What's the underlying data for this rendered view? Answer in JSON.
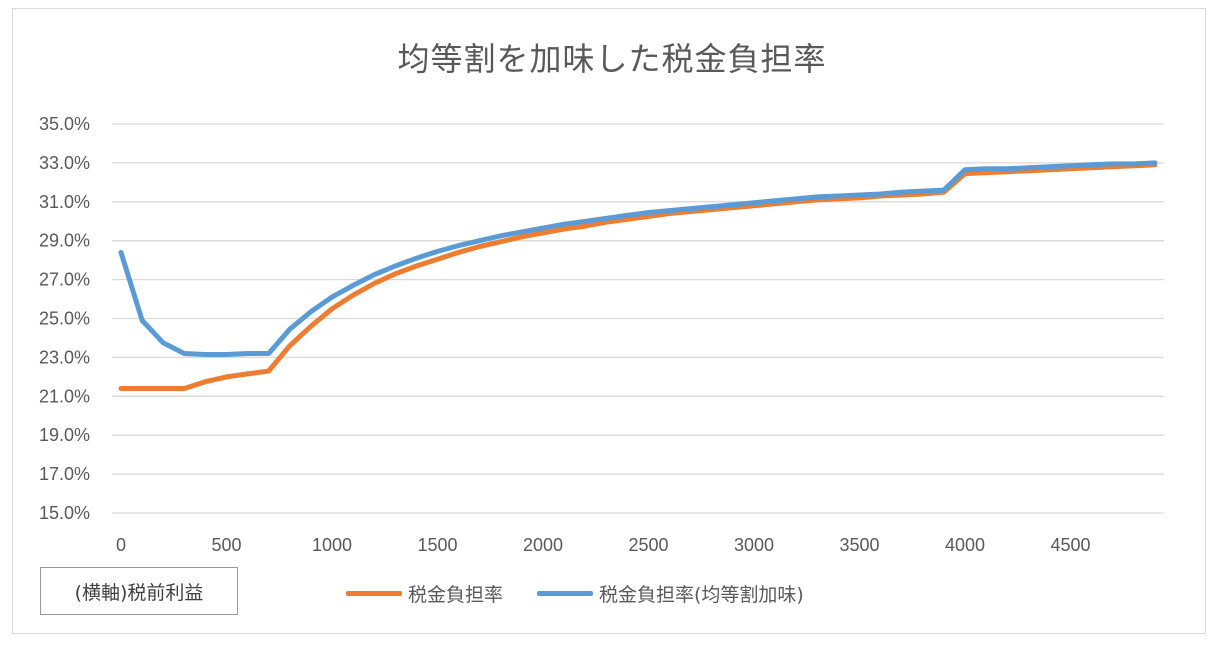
{
  "chart_data": {
    "type": "line",
    "title": "均等割を加味した税金負担率",
    "xlabel": "(横軸)税前利益",
    "ylabel": "",
    "x": [
      0,
      100,
      200,
      300,
      400,
      500,
      600,
      700,
      800,
      900,
      1000,
      1100,
      1200,
      1300,
      1400,
      1500,
      1600,
      1700,
      1800,
      1900,
      2000,
      2100,
      2200,
      2300,
      2400,
      2500,
      2600,
      2700,
      2800,
      2900,
      3000,
      3100,
      3200,
      3300,
      3400,
      3500,
      3600,
      3700,
      3800,
      3900,
      4000,
      4100,
      4200,
      4300,
      4400,
      4500,
      4600,
      4700,
      4800,
      4900
    ],
    "series": [
      {
        "name": "税金負担率",
        "color": "#ED7D31",
        "values": [
          21.4,
          21.4,
          21.4,
          21.4,
          21.75,
          22.0,
          22.15,
          22.3,
          23.6,
          24.6,
          25.5,
          26.2,
          26.8,
          27.3,
          27.7,
          28.05,
          28.4,
          28.7,
          28.95,
          29.2,
          29.4,
          29.6,
          29.75,
          29.95,
          30.1,
          30.25,
          30.4,
          30.5,
          30.6,
          30.7,
          30.8,
          30.9,
          31.0,
          31.1,
          31.15,
          31.2,
          31.3,
          31.35,
          31.4,
          31.5,
          32.45,
          32.5,
          32.55,
          32.6,
          32.65,
          32.7,
          32.75,
          32.8,
          32.85,
          32.9
        ]
      },
      {
        "name": "税金負担率(均等割加味)",
        "color": "#5B9BD5",
        "values": [
          28.4,
          24.9,
          23.75,
          23.2,
          23.15,
          23.15,
          23.2,
          23.2,
          24.45,
          25.35,
          26.1,
          26.7,
          27.25,
          27.7,
          28.1,
          28.45,
          28.75,
          29.0,
          29.25,
          29.45,
          29.65,
          29.85,
          30.0,
          30.15,
          30.3,
          30.45,
          30.55,
          30.65,
          30.75,
          30.85,
          30.95,
          31.05,
          31.15,
          31.25,
          31.3,
          31.35,
          31.4,
          31.5,
          31.55,
          31.6,
          32.65,
          32.7,
          32.7,
          32.75,
          32.8,
          32.85,
          32.9,
          32.95,
          32.95,
          33.0
        ]
      }
    ],
    "ylim": [
      15.0,
      35.0
    ],
    "xlim": [
      0,
      4900
    ],
    "y_ticks": [
      "15.0%",
      "17.0%",
      "19.0%",
      "21.0%",
      "23.0%",
      "25.0%",
      "27.0%",
      "29.0%",
      "31.0%",
      "33.0%",
      "35.0%"
    ],
    "x_ticks": [
      "0",
      "500",
      "1000",
      "1500",
      "2000",
      "2500",
      "3000",
      "3500",
      "4000",
      "4500"
    ],
    "grid": true,
    "legend_position": "bottom"
  }
}
